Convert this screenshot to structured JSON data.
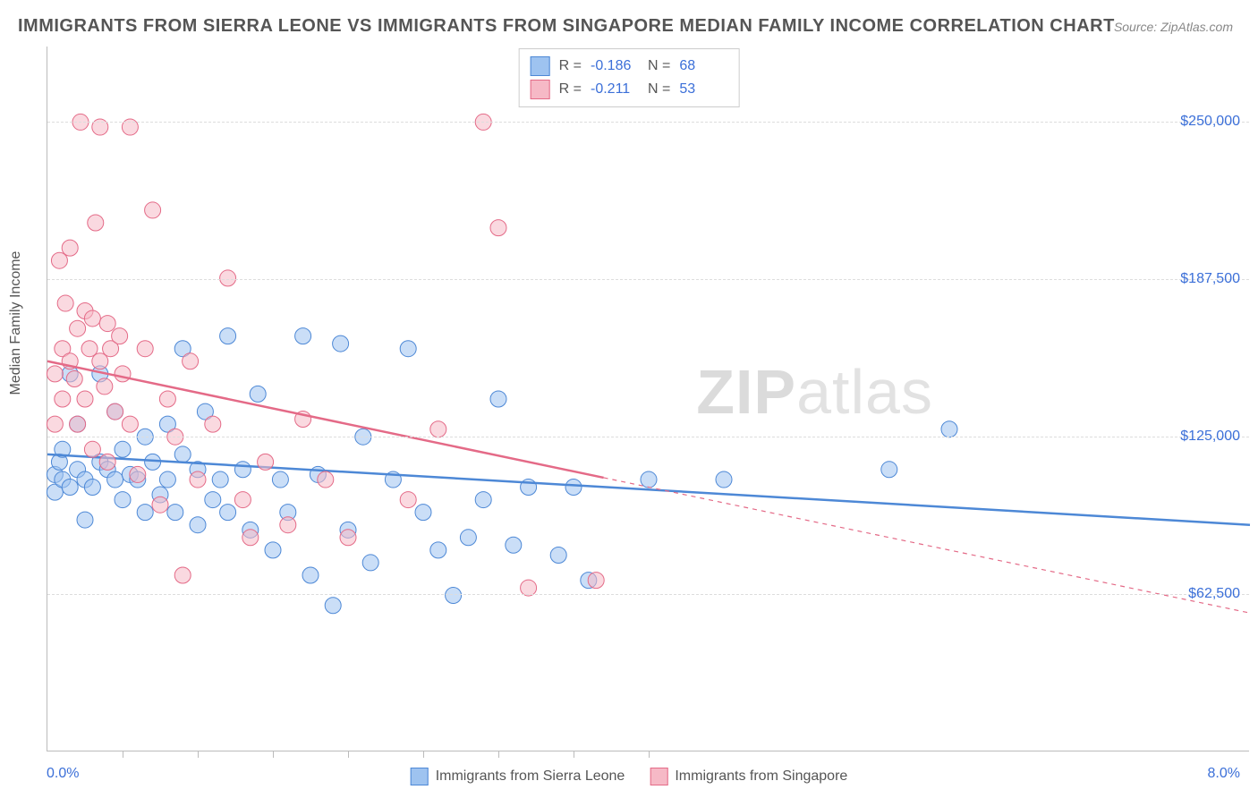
{
  "title": "IMMIGRANTS FROM SIERRA LEONE VS IMMIGRANTS FROM SINGAPORE MEDIAN FAMILY INCOME CORRELATION CHART",
  "source": "Source: ZipAtlas.com",
  "watermark_a": "ZIP",
  "watermark_b": "atlas",
  "yaxis_title": "Median Family Income",
  "chart": {
    "type": "scatter",
    "xlim": [
      0,
      8
    ],
    "ylim": [
      0,
      280000
    ],
    "xtick_positions": [
      0.5,
      1.0,
      1.5,
      2.0,
      2.5,
      3.0,
      3.5,
      4.0
    ],
    "yticks": [
      {
        "v": 62500,
        "label": "$62,500"
      },
      {
        "v": 125000,
        "label": "$125,000"
      },
      {
        "v": 187500,
        "label": "$187,500"
      },
      {
        "v": 250000,
        "label": "$250,000"
      }
    ],
    "x_min_label": "0.0%",
    "x_max_label": "8.0%",
    "background_color": "#ffffff",
    "grid_color": "#dddddd",
    "marker_radius": 9,
    "marker_opacity": 0.55,
    "line_width": 2.5,
    "series": [
      {
        "name": "Immigrants from Sierra Leone",
        "fill": "#9ec3f0",
        "stroke": "#4d88d6",
        "R": "-0.186",
        "N": "68",
        "trend": {
          "x1": 0,
          "y1": 118000,
          "x2": 8.0,
          "y2": 90000,
          "solid_until_x": 8.0
        },
        "points": [
          [
            0.05,
            103000
          ],
          [
            0.05,
            110000
          ],
          [
            0.08,
            115000
          ],
          [
            0.1,
            108000
          ],
          [
            0.1,
            120000
          ],
          [
            0.15,
            105000
          ],
          [
            0.15,
            150000
          ],
          [
            0.2,
            112000
          ],
          [
            0.2,
            130000
          ],
          [
            0.25,
            108000
          ],
          [
            0.25,
            92000
          ],
          [
            0.3,
            105000
          ],
          [
            0.35,
            150000
          ],
          [
            0.35,
            115000
          ],
          [
            0.4,
            112000
          ],
          [
            0.45,
            108000
          ],
          [
            0.45,
            135000
          ],
          [
            0.5,
            100000
          ],
          [
            0.5,
            120000
          ],
          [
            0.55,
            110000
          ],
          [
            0.6,
            108000
          ],
          [
            0.65,
            95000
          ],
          [
            0.65,
            125000
          ],
          [
            0.7,
            115000
          ],
          [
            0.75,
            102000
          ],
          [
            0.8,
            130000
          ],
          [
            0.8,
            108000
          ],
          [
            0.85,
            95000
          ],
          [
            0.9,
            118000
          ],
          [
            0.9,
            160000
          ],
          [
            1.0,
            112000
          ],
          [
            1.0,
            90000
          ],
          [
            1.05,
            135000
          ],
          [
            1.1,
            100000
          ],
          [
            1.15,
            108000
          ],
          [
            1.2,
            165000
          ],
          [
            1.2,
            95000
          ],
          [
            1.3,
            112000
          ],
          [
            1.35,
            88000
          ],
          [
            1.4,
            142000
          ],
          [
            1.5,
            80000
          ],
          [
            1.55,
            108000
          ],
          [
            1.6,
            95000
          ],
          [
            1.7,
            165000
          ],
          [
            1.75,
            70000
          ],
          [
            1.8,
            110000
          ],
          [
            1.9,
            58000
          ],
          [
            1.95,
            162000
          ],
          [
            2.0,
            88000
          ],
          [
            2.1,
            125000
          ],
          [
            2.15,
            75000
          ],
          [
            2.3,
            108000
          ],
          [
            2.4,
            160000
          ],
          [
            2.5,
            95000
          ],
          [
            2.6,
            80000
          ],
          [
            2.7,
            62000
          ],
          [
            2.8,
            85000
          ],
          [
            2.9,
            100000
          ],
          [
            3.0,
            140000
          ],
          [
            3.1,
            82000
          ],
          [
            3.2,
            105000
          ],
          [
            3.4,
            78000
          ],
          [
            3.5,
            105000
          ],
          [
            3.6,
            68000
          ],
          [
            4.5,
            108000
          ],
          [
            5.6,
            112000
          ],
          [
            6.0,
            128000
          ],
          [
            4.0,
            108000
          ]
        ]
      },
      {
        "name": "Immigrants from Singapore",
        "fill": "#f6b9c6",
        "stroke": "#e46a87",
        "R": "-0.211",
        "N": "53",
        "trend": {
          "x1": 0,
          "y1": 155000,
          "x2": 8.0,
          "y2": 55000,
          "solid_until_x": 3.7
        },
        "points": [
          [
            0.05,
            130000
          ],
          [
            0.05,
            150000
          ],
          [
            0.08,
            195000
          ],
          [
            0.1,
            160000
          ],
          [
            0.1,
            140000
          ],
          [
            0.12,
            178000
          ],
          [
            0.15,
            200000
          ],
          [
            0.15,
            155000
          ],
          [
            0.18,
            148000
          ],
          [
            0.2,
            168000
          ],
          [
            0.2,
            130000
          ],
          [
            0.22,
            250000
          ],
          [
            0.25,
            175000
          ],
          [
            0.25,
            140000
          ],
          [
            0.28,
            160000
          ],
          [
            0.3,
            172000
          ],
          [
            0.3,
            120000
          ],
          [
            0.32,
            210000
          ],
          [
            0.35,
            155000
          ],
          [
            0.35,
            248000
          ],
          [
            0.38,
            145000
          ],
          [
            0.4,
            170000
          ],
          [
            0.4,
            115000
          ],
          [
            0.42,
            160000
          ],
          [
            0.45,
            135000
          ],
          [
            0.48,
            165000
          ],
          [
            0.5,
            150000
          ],
          [
            0.55,
            248000
          ],
          [
            0.55,
            130000
          ],
          [
            0.6,
            110000
          ],
          [
            0.65,
            160000
          ],
          [
            0.7,
            215000
          ],
          [
            0.75,
            98000
          ],
          [
            0.8,
            140000
          ],
          [
            0.85,
            125000
          ],
          [
            0.9,
            70000
          ],
          [
            0.95,
            155000
          ],
          [
            1.0,
            108000
          ],
          [
            1.1,
            130000
          ],
          [
            1.2,
            188000
          ],
          [
            1.3,
            100000
          ],
          [
            1.35,
            85000
          ],
          [
            1.45,
            115000
          ],
          [
            1.6,
            90000
          ],
          [
            1.7,
            132000
          ],
          [
            1.85,
            108000
          ],
          [
            2.0,
            85000
          ],
          [
            2.4,
            100000
          ],
          [
            2.6,
            128000
          ],
          [
            2.9,
            250000
          ],
          [
            3.0,
            208000
          ],
          [
            3.2,
            65000
          ],
          [
            3.65,
            68000
          ]
        ]
      }
    ]
  }
}
